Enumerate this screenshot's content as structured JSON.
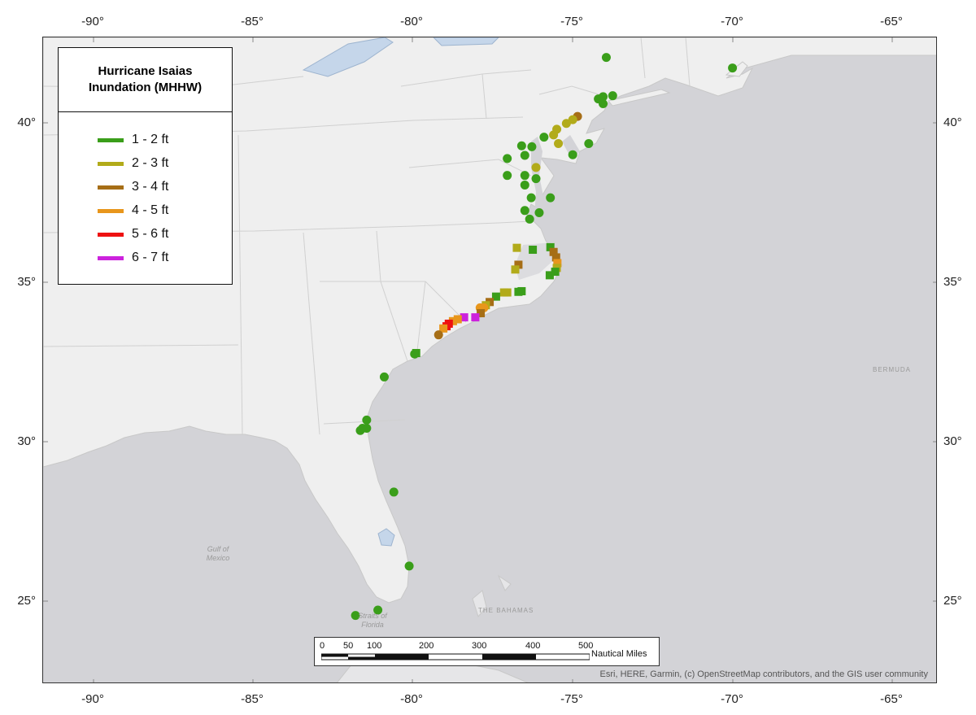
{
  "axes": {
    "lon_labels": [
      "-90°",
      "-85°",
      "-80°",
      "-75°",
      "-70°",
      "-65°"
    ],
    "lat_labels": [
      "40°",
      "35°",
      "30°",
      "25°"
    ]
  },
  "legend": {
    "title": "Hurricane Isaias Inundation (MHHW)",
    "items": [
      {
        "label": "1 - 2 ft",
        "color": "#3a9e1a"
      },
      {
        "label": "2 - 3 ft",
        "color": "#b2ab1a"
      },
      {
        "label": "3 - 4 ft",
        "color": "#a66e16"
      },
      {
        "label": "4 - 5 ft",
        "color": "#e8961c"
      },
      {
        "label": "5 - 6 ft",
        "color": "#ee1111"
      },
      {
        "label": "6 - 7 ft",
        "color": "#cc22dd"
      }
    ]
  },
  "labels": {
    "bermuda": "BERMUDA",
    "gulf": "Gulf of Mexico",
    "bahamas": "THE BAHAMAS",
    "straits": "Straits of Florida"
  },
  "scalebar": {
    "ticks": [
      "0",
      "50",
      "100",
      "200",
      "300",
      "400",
      "500"
    ],
    "units": "Nautical Miles"
  },
  "attribution": "Esri, HERE, Garmin, (c) OpenStreetMap contributors, and the GIS user community",
  "points": [
    {
      "lon": -73.95,
      "lat": 42.05,
      "cat": 1,
      "shape": "c"
    },
    {
      "lon": -70.0,
      "lat": 41.72,
      "cat": 1,
      "shape": "c"
    },
    {
      "lon": -74.2,
      "lat": 40.75,
      "cat": 1,
      "shape": "c"
    },
    {
      "lon": -74.05,
      "lat": 40.6,
      "cat": 1,
      "shape": "c"
    },
    {
      "lon": -73.75,
      "lat": 40.85,
      "cat": 1,
      "shape": "c"
    },
    {
      "lon": -74.05,
      "lat": 40.82,
      "cat": 1,
      "shape": "c"
    },
    {
      "lon": -74.85,
      "lat": 40.2,
      "cat": 3,
      "shape": "c"
    },
    {
      "lon": -75.0,
      "lat": 40.1,
      "cat": 2,
      "shape": "c"
    },
    {
      "lon": -75.2,
      "lat": 39.98,
      "cat": 2,
      "shape": "c"
    },
    {
      "lon": -75.5,
      "lat": 39.8,
      "cat": 2,
      "shape": "c"
    },
    {
      "lon": -75.6,
      "lat": 39.62,
      "cat": 2,
      "shape": "c"
    },
    {
      "lon": -75.9,
      "lat": 39.55,
      "cat": 1,
      "shape": "c"
    },
    {
      "lon": -75.45,
      "lat": 39.35,
      "cat": 2,
      "shape": "c"
    },
    {
      "lon": -75.0,
      "lat": 39.0,
      "cat": 1,
      "shape": "c"
    },
    {
      "lon": -74.5,
      "lat": 39.35,
      "cat": 1,
      "shape": "c"
    },
    {
      "lon": -76.6,
      "lat": 39.28,
      "cat": 1,
      "shape": "c"
    },
    {
      "lon": -76.28,
      "lat": 39.25,
      "cat": 1,
      "shape": "c"
    },
    {
      "lon": -76.5,
      "lat": 38.98,
      "cat": 1,
      "shape": "c"
    },
    {
      "lon": -77.05,
      "lat": 38.88,
      "cat": 1,
      "shape": "c"
    },
    {
      "lon": -76.15,
      "lat": 38.6,
      "cat": 2,
      "shape": "c"
    },
    {
      "lon": -77.05,
      "lat": 38.35,
      "cat": 1,
      "shape": "c"
    },
    {
      "lon": -76.5,
      "lat": 38.35,
      "cat": 1,
      "shape": "c"
    },
    {
      "lon": -76.15,
      "lat": 38.25,
      "cat": 1,
      "shape": "c"
    },
    {
      "lon": -76.5,
      "lat": 38.05,
      "cat": 1,
      "shape": "c"
    },
    {
      "lon": -76.3,
      "lat": 37.65,
      "cat": 1,
      "shape": "c"
    },
    {
      "lon": -75.7,
      "lat": 37.65,
      "cat": 1,
      "shape": "c"
    },
    {
      "lon": -76.5,
      "lat": 37.25,
      "cat": 1,
      "shape": "c"
    },
    {
      "lon": -76.05,
      "lat": 37.18,
      "cat": 1,
      "shape": "c"
    },
    {
      "lon": -76.35,
      "lat": 36.98,
      "cat": 1,
      "shape": "c"
    },
    {
      "lon": -76.75,
      "lat": 36.08,
      "cat": 2,
      "shape": "s"
    },
    {
      "lon": -76.25,
      "lat": 36.02,
      "cat": 1,
      "shape": "s"
    },
    {
      "lon": -75.7,
      "lat": 36.1,
      "cat": 1,
      "shape": "s"
    },
    {
      "lon": -75.6,
      "lat": 35.95,
      "cat": 3,
      "shape": "s"
    },
    {
      "lon": -75.52,
      "lat": 35.78,
      "cat": 3,
      "shape": "s"
    },
    {
      "lon": -75.48,
      "lat": 35.6,
      "cat": 4,
      "shape": "s"
    },
    {
      "lon": -75.5,
      "lat": 35.45,
      "cat": 2,
      "shape": "s"
    },
    {
      "lon": -75.55,
      "lat": 35.33,
      "cat": 1,
      "shape": "s"
    },
    {
      "lon": -75.72,
      "lat": 35.22,
      "cat": 1,
      "shape": "s"
    },
    {
      "lon": -76.7,
      "lat": 35.55,
      "cat": 3,
      "shape": "s"
    },
    {
      "lon": -76.8,
      "lat": 35.4,
      "cat": 2,
      "shape": "s"
    },
    {
      "lon": -76.6,
      "lat": 34.72,
      "cat": 1,
      "shape": "s"
    },
    {
      "lon": -76.7,
      "lat": 34.7,
      "cat": 1,
      "shape": "s"
    },
    {
      "lon": -77.05,
      "lat": 34.68,
      "cat": 2,
      "shape": "s"
    },
    {
      "lon": -77.15,
      "lat": 34.68,
      "cat": 2,
      "shape": "s"
    },
    {
      "lon": -77.4,
      "lat": 34.55,
      "cat": 1,
      "shape": "s"
    },
    {
      "lon": -77.6,
      "lat": 34.38,
      "cat": 3,
      "shape": "s"
    },
    {
      "lon": -77.72,
      "lat": 34.28,
      "cat": 2,
      "shape": "s"
    },
    {
      "lon": -77.78,
      "lat": 34.2,
      "cat": 4,
      "shape": "c"
    },
    {
      "lon": -77.9,
      "lat": 34.2,
      "cat": 4,
      "shape": "c"
    },
    {
      "lon": -77.88,
      "lat": 34.03,
      "cat": 3,
      "shape": "s"
    },
    {
      "lon": -78.05,
      "lat": 33.9,
      "cat": 6,
      "shape": "s"
    },
    {
      "lon": -78.4,
      "lat": 33.9,
      "cat": 6,
      "shape": "s"
    },
    {
      "lon": -78.6,
      "lat": 33.84,
      "cat": 4,
      "shape": "s"
    },
    {
      "lon": -78.75,
      "lat": 33.78,
      "cat": 4,
      "shape": "s"
    },
    {
      "lon": -78.88,
      "lat": 33.7,
      "cat": 5,
      "shape": "s"
    },
    {
      "lon": -78.95,
      "lat": 33.62,
      "cat": 5,
      "shape": "s"
    },
    {
      "lon": -79.05,
      "lat": 33.55,
      "cat": 4,
      "shape": "s"
    },
    {
      "lon": -79.2,
      "lat": 33.35,
      "cat": 3,
      "shape": "c"
    },
    {
      "lon": -79.9,
      "lat": 32.78,
      "cat": 1,
      "shape": "s"
    },
    {
      "lon": -79.95,
      "lat": 32.75,
      "cat": 1,
      "shape": "c"
    },
    {
      "lon": -80.9,
      "lat": 32.03,
      "cat": 1,
      "shape": "c"
    },
    {
      "lon": -81.45,
      "lat": 30.68,
      "cat": 1,
      "shape": "c"
    },
    {
      "lon": -81.45,
      "lat": 30.42,
      "cat": 1,
      "shape": "c"
    },
    {
      "lon": -81.65,
      "lat": 30.35,
      "cat": 1,
      "shape": "c"
    },
    {
      "lon": -81.58,
      "lat": 30.42,
      "cat": 1,
      "shape": "c"
    },
    {
      "lon": -80.6,
      "lat": 28.42,
      "cat": 1,
      "shape": "c"
    },
    {
      "lon": -80.12,
      "lat": 26.1,
      "cat": 1,
      "shape": "c"
    },
    {
      "lon": -81.8,
      "lat": 24.55,
      "cat": 1,
      "shape": "c"
    },
    {
      "lon": -81.1,
      "lat": 24.72,
      "cat": 1,
      "shape": "c"
    }
  ]
}
